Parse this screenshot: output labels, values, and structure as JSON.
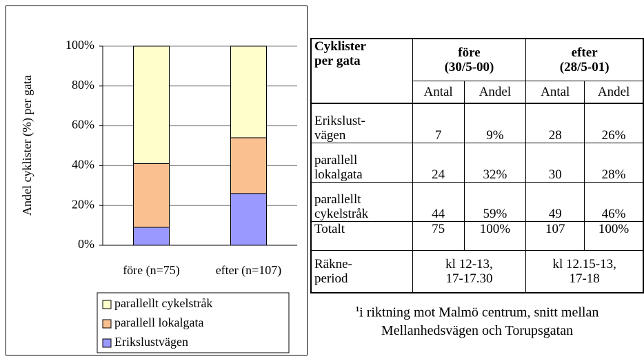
{
  "chart_data": {
    "type": "stacked_bar",
    "y_label": "Andel cyklister (%) per gata",
    "categories": [
      "före (n=75)",
      "efter (n=107)"
    ],
    "series": [
      {
        "name": "Erikslustvägen",
        "color": "#9999ff",
        "values": [
          9,
          26
        ]
      },
      {
        "name": "parallell lokalgata",
        "color": "#fac090",
        "values": [
          32,
          28
        ]
      },
      {
        "name": "parallellt cykelstråk",
        "color": "#ffffcc",
        "values": [
          59,
          46
        ]
      }
    ],
    "ylim": [
      0,
      100
    ],
    "yticks": [
      {
        "value": 0,
        "label": "0%"
      },
      {
        "value": 20,
        "label": "20%"
      },
      {
        "value": 40,
        "label": "40%"
      },
      {
        "value": 60,
        "label": "60%"
      },
      {
        "value": 80,
        "label": "80%"
      },
      {
        "value": 100,
        "label": "100%"
      }
    ],
    "grid": true
  },
  "table": {
    "corner": "Cyklister\nper gata",
    "corner_note": "1",
    "groups": [
      "före\n(30/5-00)",
      "efter\n(28/5-01)"
    ],
    "subheaders": [
      "Antal",
      "Andel",
      "Antal",
      "Andel"
    ],
    "rows": [
      [
        "Erikslust-\nvägen",
        "7",
        "9%",
        "28",
        "26%"
      ],
      [
        "parallell\nlokalgata",
        "24",
        "32%",
        "30",
        "28%"
      ],
      [
        "parallellt\ncykelstråk",
        "44",
        "59%",
        "49",
        "46%"
      ],
      [
        "Totalt",
        "75",
        "100%",
        "107",
        "100%"
      ]
    ],
    "period_row": [
      "Räkne-\nperiod",
      "kl 12-13,\n17-17.30",
      "kl 12.15-13,\n17-18"
    ]
  },
  "footnote": {
    "marker": "1",
    "text": "i riktning mot Malmö centrum, snitt mellan Mellanhedsvägen och Torupsgatan"
  }
}
